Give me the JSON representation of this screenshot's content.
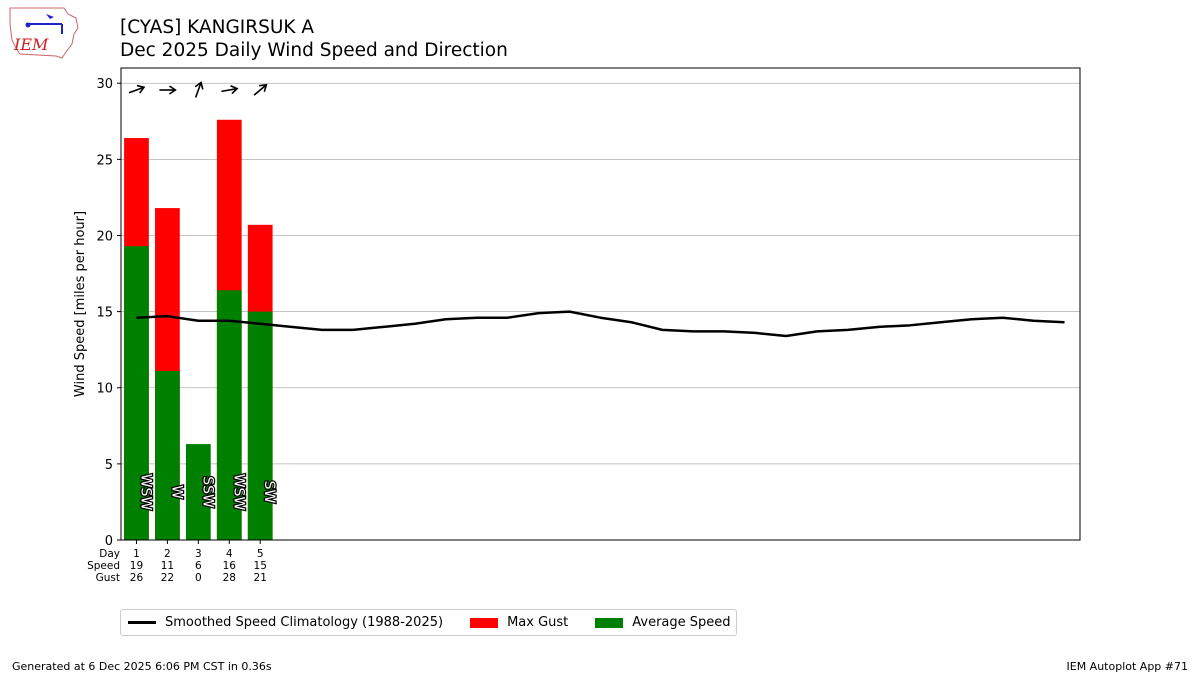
{
  "title": "[CYAS] KANGIRSUK A",
  "subtitle": "Dec 2025 Daily Wind Speed and Direction",
  "logo_text": "IEM",
  "colors": {
    "gust": "#ff0000",
    "avg": "#008000",
    "clim": "#000000",
    "grid": "#b0b0b0"
  },
  "legend": {
    "climatology": "Smoothed Speed Climatology (1988-2025)",
    "gust": "Max Gust",
    "avg": "Average Speed"
  },
  "footer": {
    "left": "Generated at 6 Dec 2025 6:06 PM CST in 0.36s",
    "right": "IEM Autoplot App #71"
  },
  "chart_data": {
    "type": "bar",
    "ylabel": "Wind Speed [miles per hour]",
    "ylim": [
      0,
      31
    ],
    "xlim": [
      0.5,
      31.5
    ],
    "yticks": [
      0,
      5,
      10,
      15,
      20,
      25,
      30
    ],
    "grid": true,
    "legend_position": "below",
    "table_row_labels": [
      "Day",
      "Speed",
      "Gust"
    ],
    "days": [
      1,
      2,
      3,
      4,
      5
    ],
    "avg_speed": [
      19.3,
      11.1,
      6.3,
      16.4,
      15.0
    ],
    "max_gust": [
      26.4,
      21.8,
      0,
      27.6,
      20.7
    ],
    "speed_labels": [
      "19",
      "11",
      "6",
      "16",
      "15"
    ],
    "gust_labels": [
      "26",
      "22",
      "0",
      "28",
      "21"
    ],
    "direction_labels": [
      "WSW",
      "W",
      "SSW",
      "WSW",
      "SW"
    ],
    "direction_arrows": [
      "↗",
      "→",
      "↗",
      "→",
      "↗"
    ],
    "direction_angles": [
      -20,
      0,
      -70,
      -10,
      -40
    ],
    "climatology": {
      "x": [
        1,
        2,
        3,
        4,
        5,
        6,
        7,
        8,
        9,
        10,
        11,
        12,
        13,
        14,
        15,
        16,
        17,
        18,
        19,
        20,
        21,
        22,
        23,
        24,
        25,
        26,
        27,
        28,
        29,
        30,
        31
      ],
      "y": [
        14.6,
        14.7,
        14.4,
        14.4,
        14.2,
        14.0,
        13.8,
        13.8,
        14.0,
        14.2,
        14.5,
        14.6,
        14.6,
        14.9,
        15.0,
        14.6,
        14.3,
        13.8,
        13.7,
        13.7,
        13.6,
        13.4,
        13.7,
        13.8,
        14.0,
        14.1,
        14.3,
        14.5,
        14.6,
        14.4,
        14.3
      ]
    }
  }
}
